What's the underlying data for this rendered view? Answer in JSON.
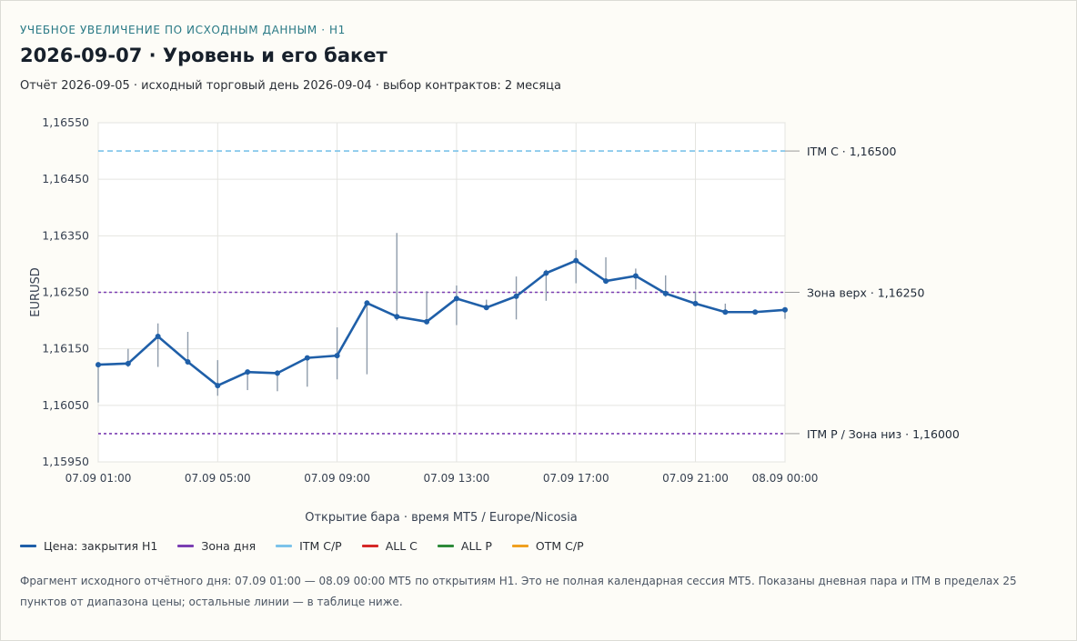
{
  "header": {
    "kicker": "УЧЕБНОЕ УВЕЛИЧЕНИЕ ПО ИСХОДНЫМ ДАННЫМ · H1",
    "title": "2026-09-07 · Уровень и его бакет",
    "subtitle": "Отчёт 2026-09-05 · исходный торговый день 2026-09-04 · выбор контрактов: 2 месяца"
  },
  "chart_data": {
    "type": "line",
    "xlabel": "Открытие бара · время MT5 / Europe/Nicosia",
    "ylabel": "EURUSD",
    "ylim": [
      1.1595,
      1.1655
    ],
    "y_ticks": [
      "1,16550",
      "1,16450",
      "1,16350",
      "1,16250",
      "1,16150",
      "1,16050",
      "1,15950"
    ],
    "y_tick_values": [
      1.1655,
      1.1645,
      1.1635,
      1.1625,
      1.1615,
      1.1605,
      1.1595
    ],
    "x_ticks": [
      "07.09 01:00",
      "07.09 05:00",
      "07.09 09:00",
      "07.09 13:00",
      "07.09 17:00",
      "07.09 21:00",
      "08.09 00:00"
    ],
    "x_tick_index": [
      0,
      4,
      8,
      12,
      16,
      20,
      23
    ],
    "x": [
      "07.09 01:00",
      "07.09 02:00",
      "07.09 03:00",
      "07.09 04:00",
      "07.09 05:00",
      "07.09 06:00",
      "07.09 07:00",
      "07.09 08:00",
      "07.09 09:00",
      "07.09 10:00",
      "07.09 11:00",
      "07.09 12:00",
      "07.09 13:00",
      "07.09 14:00",
      "07.09 15:00",
      "07.09 16:00",
      "07.09 17:00",
      "07.09 18:00",
      "07.09 19:00",
      "07.09 20:00",
      "07.09 21:00",
      "07.09 22:00",
      "07.09 23:00",
      "08.09 00:00"
    ],
    "series": [
      {
        "name": "Цена: закрытия H1",
        "color": "#1f5fa8",
        "values": [
          1.16122,
          1.16124,
          1.16172,
          1.16127,
          1.16085,
          1.16109,
          1.16107,
          1.16134,
          1.16138,
          1.16231,
          1.16207,
          1.16198,
          1.16239,
          1.16223,
          1.16243,
          1.16284,
          1.16306,
          1.1627,
          1.16279,
          1.16248,
          1.1623,
          1.16215,
          1.16215,
          1.16219
        ],
        "high": [
          1.16122,
          1.1615,
          1.16195,
          1.1618,
          1.1613,
          1.16112,
          1.16112,
          1.16137,
          1.16188,
          1.16234,
          1.16355,
          1.16252,
          1.16262,
          1.16237,
          1.16278,
          1.1629,
          1.16325,
          1.16312,
          1.16292,
          1.1628,
          1.1625,
          1.1623,
          1.16218,
          1.1622
        ],
        "low": [
          1.16055,
          1.16118,
          1.16118,
          1.16122,
          1.16067,
          1.16077,
          1.16075,
          1.16083,
          1.16096,
          1.16105,
          1.162,
          1.16198,
          1.16192,
          1.16222,
          1.16202,
          1.16235,
          1.16266,
          1.16265,
          1.16255,
          1.16242,
          1.16226,
          1.16212,
          1.16212,
          1.16203
        ]
      }
    ],
    "levels": [
      {
        "label": "ITM C · 1,16500",
        "value": 1.165,
        "style": "dashed",
        "color": "#7cc3ea"
      },
      {
        "label": "Зона верх · 1,16250",
        "value": 1.1625,
        "style": "dotted",
        "color": "#7b3fb3"
      },
      {
        "label": "ITM P / Зона низ · 1,16000",
        "value": 1.16,
        "style": "dotted",
        "color": "#7b3fb3"
      }
    ],
    "grid": true
  },
  "legend": [
    {
      "label": "Цена: закрытия H1",
      "color": "#1f5fa8"
    },
    {
      "label": "Зона дня",
      "color": "#7b3fb3"
    },
    {
      "label": "ITM C/P",
      "color": "#7cc3ea"
    },
    {
      "label": "ALL C",
      "color": "#d62828"
    },
    {
      "label": "ALL P",
      "color": "#2e8b3a"
    },
    {
      "label": "OTM C/P",
      "color": "#f0a020"
    }
  ],
  "footnote": "Фрагмент исходного отчётного дня: 07.09 01:00 — 08.09 00:00 MT5 по открытиям H1. Это не полная календарная сессия MT5. Показаны дневная пара и ITM в пределах 25 пунктов от диапазона цены; остальные линии — в таблице ниже."
}
